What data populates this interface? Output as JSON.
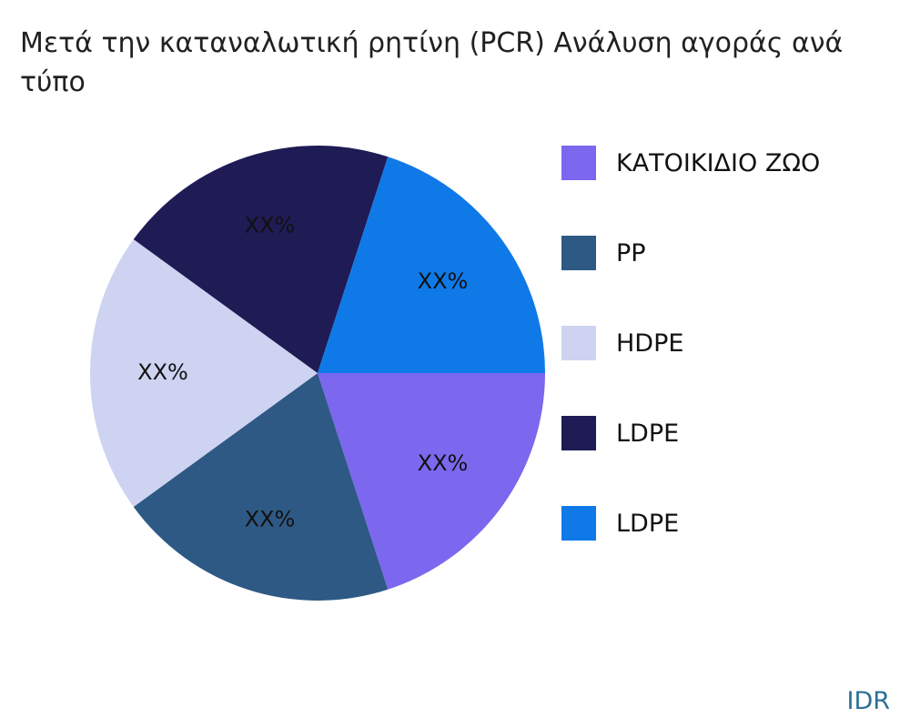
{
  "chart": {
    "title_line1": "Μετά την καταναλωτική ρητίνη (PCR) Ανάλυση αγοράς ανά",
    "title_line2": "τύπο"
  },
  "footer": {
    "brand": "IDR",
    "brand_color": "#2B7095"
  },
  "chart_data": {
    "type": "pie",
    "title": "Μετά την καταναλωτική ρητίνη (PCR) Ανάλυση αγοράς ανά τύπο",
    "labels": [
      "ΚΑΤΟΙΚΙΔΙΟ ΖΩΟ",
      "PP",
      "HDPE",
      "LDPE",
      "LDPE"
    ],
    "values": [
      20,
      20,
      20,
      20,
      20
    ],
    "value_labels": [
      "XX%",
      "XX%",
      "XX%",
      "XX%",
      "XX%"
    ],
    "colors": [
      "#7B68EE",
      "#2E5984",
      "#CDD3F1",
      "#1E1B55",
      "#1079E8"
    ],
    "start_angle_deg": 0,
    "direction": "clockwise",
    "label_distance": 0.68,
    "radius_px": 250,
    "legend_position": "right",
    "legend_swatch_colors": [
      "#7B68EE",
      "#2E5984",
      "#CDD3F1",
      "#1E1B55",
      "#1079E8"
    ]
  }
}
